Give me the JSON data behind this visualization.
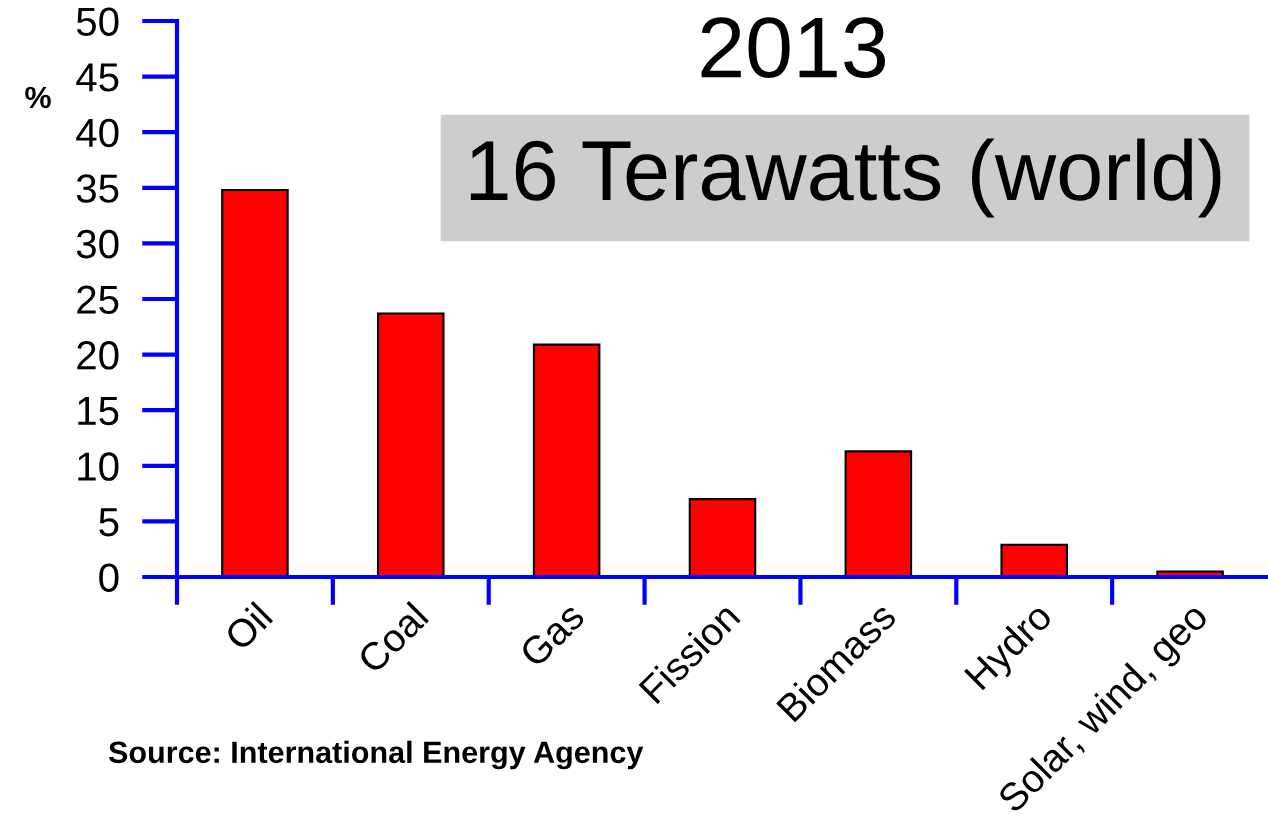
{
  "chart_data": {
    "type": "bar",
    "title": "2013",
    "subtitle": "16 Terawatts (world)",
    "ylabel": "%",
    "annotations": [
      "Source: International Energy Agency"
    ],
    "categories": [
      "Oil",
      "Coal",
      "Gas",
      "Fission",
      "Biomass",
      "Hydro",
      "Solar, wind, geo"
    ],
    "values": [
      34.8,
      23.7,
      20.9,
      7.0,
      11.3,
      2.9,
      0.5
    ],
    "color": "#ff0000",
    "ylim": [
      0,
      50
    ],
    "yticks": [
      0,
      5,
      10,
      15,
      20,
      25,
      30,
      35,
      40,
      45,
      50
    ]
  }
}
